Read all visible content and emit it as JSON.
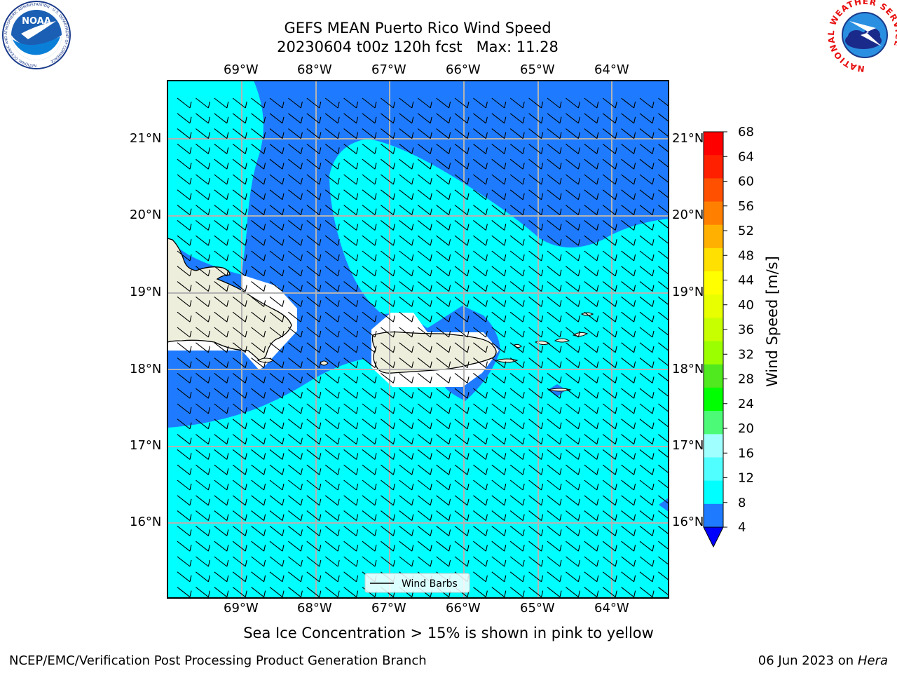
{
  "header": {
    "title_line1": "GEFS MEAN Puerto Rico Wind Speed",
    "title_line2": "20230604 t00z 120h fcst   Max: 11.28"
  },
  "logos": {
    "noaa_text": "NOAA",
    "noaa_ring_text": "NATIONAL OCEANIC AND ATMOSPHERIC ADMINISTRATION · U.S. DEPARTMENT OF COMMERCE",
    "nws_ring_text": "NATIONAL WEATHER SERVICE"
  },
  "map": {
    "lon_labels": [
      "69°W",
      "68°W",
      "67°W",
      "66°W",
      "65°W",
      "64°W"
    ],
    "lat_labels": [
      "21°N",
      "20°N",
      "19°N",
      "18°N",
      "17°N",
      "16°N"
    ],
    "legend_label": "Wind Barbs",
    "colors": {
      "calm_band": "#1e7bff",
      "moderate_band": "#00ffff",
      "land": "#eeeedd",
      "mask": "#ffffff",
      "grid": "#b3b3b3"
    }
  },
  "colorbar": {
    "label": "Wind Speed [m/s]",
    "ticks": [
      "68",
      "64",
      "60",
      "56",
      "52",
      "48",
      "44",
      "40",
      "36",
      "32",
      "28",
      "24",
      "20",
      "16",
      "12",
      "8",
      "4"
    ],
    "colors_top_to_bottom": [
      "#ff0000",
      "#ff2000",
      "#ff5000",
      "#ff8000",
      "#ffb000",
      "#ffe000",
      "#ffff00",
      "#e8ff00",
      "#c8ff00",
      "#9cff00",
      "#50e81e",
      "#00ff00",
      "#4cfa78",
      "#a0ffff",
      "#50ffff",
      "#00ffff",
      "#1e7bff"
    ],
    "under_color": "#0000ff"
  },
  "caption": "Sea Ice Concentration > 15% is shown in pink to yellow",
  "footer": {
    "left": "NCEP/EMC/Verification Post Processing Product Generation Branch",
    "date": "06 Jun 2023",
    "on": "on",
    "machine": "Hera"
  }
}
